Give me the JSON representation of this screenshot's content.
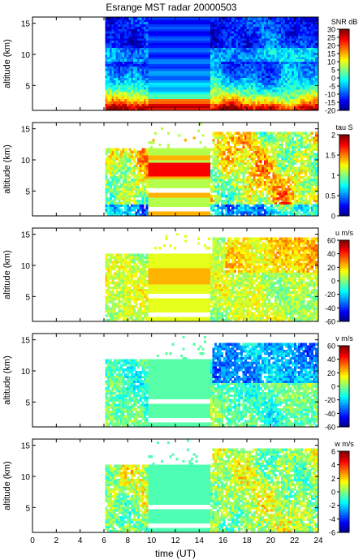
{
  "chart_data": {
    "title": "Esrange MST radar 20000503",
    "xlabel": "time (UT)",
    "xlim": [
      0,
      24
    ],
    "x_ticks": [
      "0",
      "2",
      "4",
      "6",
      "8",
      "10",
      "12",
      "14",
      "16",
      "18",
      "20",
      "22",
      "24"
    ],
    "panels": [
      {
        "type": "heatmap",
        "quantity": "SNR",
        "colorbar_label": "SNR dB",
        "ylabel": "altitude (km)",
        "ylim": [
          1,
          16
        ],
        "y_ticks": [
          "5",
          "10",
          "15"
        ],
        "clim": [
          -20,
          30
        ],
        "colorbar_ticks": [
          "-20",
          "-15",
          "-10",
          "-5",
          "0",
          "5",
          "10",
          "15",
          "20",
          "25",
          "30"
        ],
        "data_time_range": [
          6.1,
          24
        ],
        "constant_segment": [
          9.6,
          14.9
        ]
      },
      {
        "type": "heatmap",
        "quantity": "tau",
        "colorbar_label": "tau S",
        "ylabel": "altitude (km)",
        "ylim": [
          1,
          16
        ],
        "y_ticks": [
          "5",
          "10",
          "15"
        ],
        "clim": [
          0,
          2
        ],
        "colorbar_ticks": [
          "0",
          "0.5",
          "1",
          "1.5",
          "2"
        ],
        "data_time_range": [
          6.1,
          24
        ],
        "constant_segment": [
          9.6,
          14.9
        ]
      },
      {
        "type": "heatmap",
        "quantity": "u",
        "colorbar_label": "u m/s",
        "ylabel": "altitude (km)",
        "ylim": [
          1,
          16
        ],
        "y_ticks": [
          "5",
          "10",
          "15"
        ],
        "clim": [
          -60,
          60
        ],
        "colorbar_ticks": [
          "-60",
          "-40",
          "-20",
          "0",
          "20",
          "40",
          "60"
        ],
        "data_time_range": [
          6.1,
          24
        ],
        "constant_segment": [
          9.6,
          14.9
        ]
      },
      {
        "type": "heatmap",
        "quantity": "v",
        "colorbar_label": "v m/s",
        "ylabel": "altitude (km)",
        "ylim": [
          1,
          16
        ],
        "y_ticks": [
          "5",
          "10",
          "15"
        ],
        "clim": [
          -60,
          60
        ],
        "colorbar_ticks": [
          "-60",
          "-40",
          "-20",
          "0",
          "20",
          "40",
          "60"
        ],
        "data_time_range": [
          6.1,
          24
        ],
        "constant_segment": [
          9.6,
          14.9
        ]
      },
      {
        "type": "heatmap",
        "quantity": "w",
        "colorbar_label": "w m/s",
        "ylabel": "altitude (km)",
        "ylim": [
          1,
          16
        ],
        "y_ticks": [
          "5",
          "10",
          "15"
        ],
        "clim": [
          -6,
          6
        ],
        "colorbar_ticks": [
          "-6",
          "-4",
          "-2",
          "0",
          "2",
          "4",
          "6"
        ],
        "data_time_range": [
          6.1,
          24
        ],
        "constant_segment": [
          9.6,
          14.9
        ]
      }
    ]
  }
}
